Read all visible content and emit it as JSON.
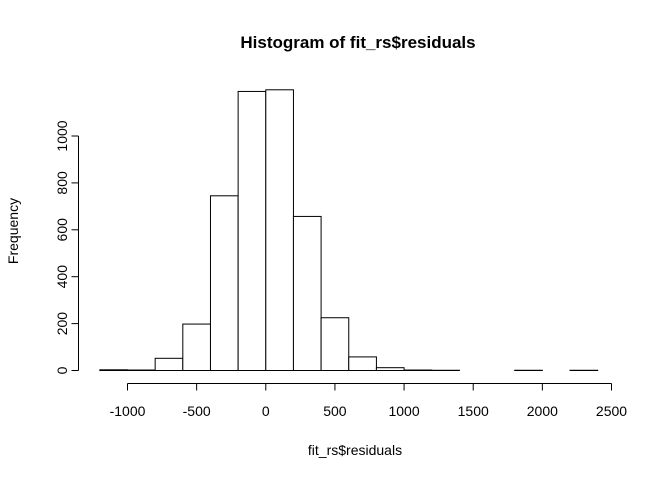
{
  "chart_data": {
    "type": "bar",
    "title": "Histogram of fit_rs$residuals",
    "xlabel": "fit_rs$residuals",
    "ylabel": "Frequency",
    "xlim": [
      -1200,
      2400
    ],
    "ylim": [
      0,
      1200
    ],
    "xticks": [
      -1000,
      -500,
      0,
      500,
      1000,
      1500,
      2000,
      2500
    ],
    "yticks": [
      0,
      200,
      400,
      600,
      800,
      1000
    ],
    "bins": [
      {
        "x0": -1200,
        "x1": -1000,
        "count": 3
      },
      {
        "x0": -1000,
        "x1": -800,
        "count": 2
      },
      {
        "x0": -800,
        "x1": -600,
        "count": 52
      },
      {
        "x0": -600,
        "x1": -400,
        "count": 198
      },
      {
        "x0": -400,
        "x1": -200,
        "count": 745
      },
      {
        "x0": -200,
        "x1": 0,
        "count": 1190
      },
      {
        "x0": 0,
        "x1": 200,
        "count": 1197
      },
      {
        "x0": 200,
        "x1": 400,
        "count": 657
      },
      {
        "x0": 400,
        "x1": 600,
        "count": 225
      },
      {
        "x0": 600,
        "x1": 800,
        "count": 58
      },
      {
        "x0": 800,
        "x1": 1000,
        "count": 12
      },
      {
        "x0": 1000,
        "x1": 1200,
        "count": 2
      },
      {
        "x0": 1200,
        "x1": 1400,
        "count": 1
      },
      {
        "x0": 1400,
        "x1": 1600,
        "count": 0
      },
      {
        "x0": 1600,
        "x1": 1800,
        "count": 0
      },
      {
        "x0": 1800,
        "x1": 2000,
        "count": 1
      },
      {
        "x0": 2000,
        "x1": 2200,
        "count": 0
      },
      {
        "x0": 2200,
        "x1": 2400,
        "count": 1
      }
    ]
  }
}
